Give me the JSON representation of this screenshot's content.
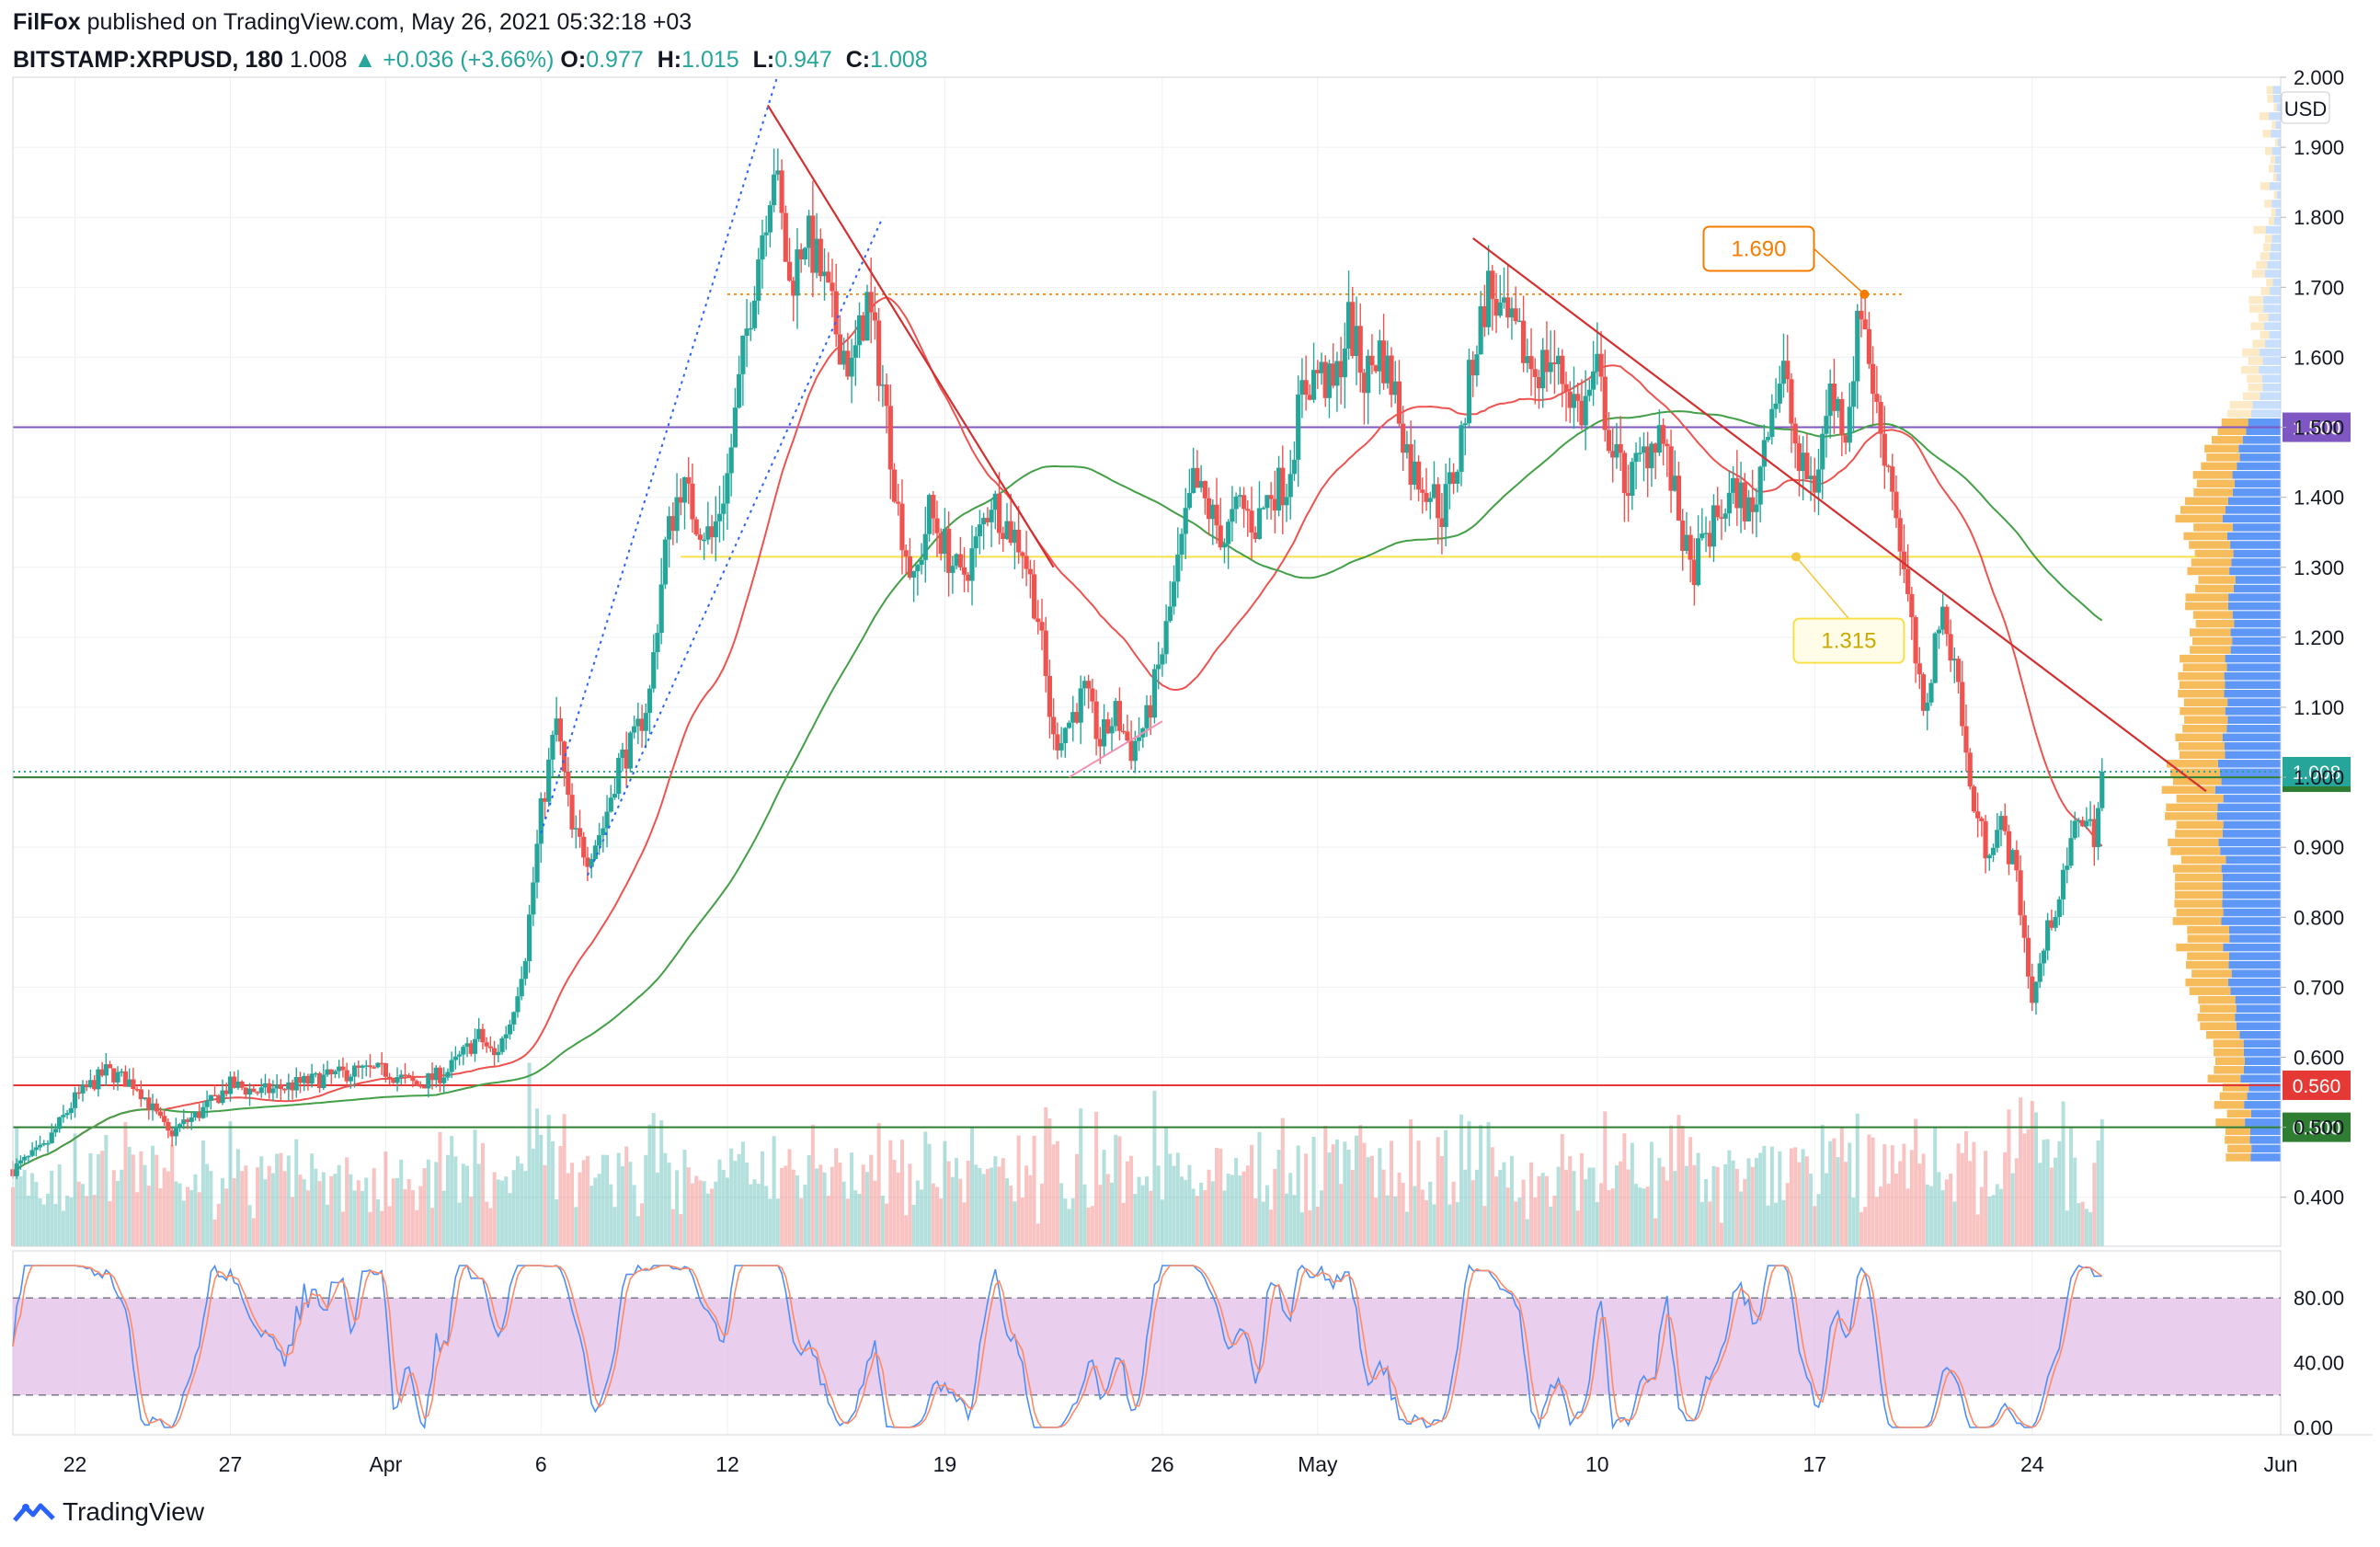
{
  "header": {
    "publisher": "FilFox",
    "published_line": "published on TradingView.com, May 26, 2021 05:32:18 +03",
    "symbol": "BITSTAMP:XRPUSD, 180",
    "last": "1.008",
    "change": "+0.036 (+3.66%)",
    "o_label": "O:",
    "o_value": "0.977",
    "h_label": "H:",
    "h_value": "1.015",
    "l_label": "L:",
    "l_value": "0.947",
    "c_label": "C:",
    "c_value": "1.008"
  },
  "footer": {
    "brand": "TradingView"
  },
  "colors": {
    "up": "#26a69a",
    "down": "#ef5350",
    "trend": "#d32f2f",
    "ma_fast": "#ef5350",
    "ma_slow": "#43a047",
    "purple": "#7e57c2",
    "stoch_band": "#e1bee7",
    "orange": "#f57c00",
    "yellow": "#f9e04b"
  },
  "chart_data": {
    "type": "candlestick",
    "currency": "USD",
    "price_axis": {
      "ticks": [
        "2.000",
        "1.900",
        "1.800",
        "1.700",
        "1.600",
        "1.500",
        "1.400",
        "1.300",
        "1.200",
        "1.100",
        "1.000",
        "0.900",
        "0.800",
        "0.700",
        "0.600",
        "0.500",
        "0.400"
      ],
      "min": 0.33,
      "max": 2.0
    },
    "x_labels": [
      {
        "label": "22",
        "day": 22
      },
      {
        "label": "27",
        "day": 27
      },
      {
        "label": "Apr",
        "day": 32
      },
      {
        "label": "6",
        "day": 37
      },
      {
        "label": "12",
        "day": 43
      },
      {
        "label": "19",
        "day": 50
      },
      {
        "label": "26",
        "day": 57
      },
      {
        "label": "May",
        "day": 62
      },
      {
        "label": "10",
        "day": 71
      },
      {
        "label": "17",
        "day": 78
      },
      {
        "label": "24",
        "day": 85
      },
      {
        "label": "Jun",
        "day": 93
      }
    ],
    "x_range_days": [
      20,
      93
    ],
    "price_path": [
      [
        20,
        0.44
      ],
      [
        21,
        0.47
      ],
      [
        22,
        0.54
      ],
      [
        23,
        0.58
      ],
      [
        24,
        0.56
      ],
      [
        25,
        0.49
      ],
      [
        26,
        0.52
      ],
      [
        27,
        0.56
      ],
      [
        28,
        0.55
      ],
      [
        29,
        0.56
      ],
      [
        30,
        0.57
      ],
      [
        31,
        0.58
      ],
      [
        32,
        0.58
      ],
      [
        33,
        0.56
      ],
      [
        34,
        0.58
      ],
      [
        35,
        0.63
      ],
      [
        35.5,
        0.6
      ],
      [
        36,
        0.65
      ],
      [
        36.5,
        0.75
      ],
      [
        37,
        0.95
      ],
      [
        37.5,
        1.08
      ],
      [
        38,
        0.92
      ],
      [
        38.5,
        0.89
      ],
      [
        39,
        0.93
      ],
      [
        39.5,
        1.02
      ],
      [
        40,
        1.05
      ],
      [
        40.5,
        1.12
      ],
      [
        41,
        1.33
      ],
      [
        41.5,
        1.42
      ],
      [
        42,
        1.37
      ],
      [
        42.5,
        1.34
      ],
      [
        43,
        1.43
      ],
      [
        43.5,
        1.6
      ],
      [
        44,
        1.75
      ],
      [
        44.5,
        1.88
      ],
      [
        45,
        1.7
      ],
      [
        45.5,
        1.78
      ],
      [
        46,
        1.72
      ],
      [
        46.5,
        1.64
      ],
      [
        47,
        1.58
      ],
      [
        47.5,
        1.68
      ],
      [
        48,
        1.56
      ],
      [
        48.5,
        1.38
      ],
      [
        49,
        1.27
      ],
      [
        49.5,
        1.38
      ],
      [
        50,
        1.33
      ],
      [
        50.5,
        1.28
      ],
      [
        51,
        1.33
      ],
      [
        51.5,
        1.4
      ],
      [
        52,
        1.36
      ],
      [
        52.5,
        1.33
      ],
      [
        53,
        1.23
      ],
      [
        53.5,
        1.05
      ],
      [
        54,
        1.08
      ],
      [
        54.5,
        1.12
      ],
      [
        55,
        1.05
      ],
      [
        55.5,
        1.09
      ],
      [
        56,
        1.04
      ],
      [
        56.5,
        1.08
      ],
      [
        57,
        1.18
      ],
      [
        57.5,
        1.3
      ],
      [
        58,
        1.42
      ],
      [
        58.5,
        1.38
      ],
      [
        59,
        1.34
      ],
      [
        59.5,
        1.39
      ],
      [
        60,
        1.36
      ],
      [
        60.5,
        1.41
      ],
      [
        61,
        1.42
      ],
      [
        61.5,
        1.55
      ],
      [
        62,
        1.58
      ],
      [
        62.5,
        1.55
      ],
      [
        63,
        1.65
      ],
      [
        63.5,
        1.57
      ],
      [
        64,
        1.61
      ],
      [
        64.5,
        1.55
      ],
      [
        65,
        1.44
      ],
      [
        65.5,
        1.42
      ],
      [
        66,
        1.38
      ],
      [
        66.5,
        1.45
      ],
      [
        67,
        1.6
      ],
      [
        67.5,
        1.7
      ],
      [
        68,
        1.65
      ],
      [
        68.5,
        1.62
      ],
      [
        69,
        1.58
      ],
      [
        69.5,
        1.6
      ],
      [
        70,
        1.56
      ],
      [
        70.5,
        1.52
      ],
      [
        71,
        1.58
      ],
      [
        71.5,
        1.46
      ],
      [
        72,
        1.42
      ],
      [
        72.5,
        1.46
      ],
      [
        73,
        1.5
      ],
      [
        73.5,
        1.4
      ],
      [
        74,
        1.29
      ],
      [
        74.5,
        1.34
      ],
      [
        75,
        1.38
      ],
      [
        75.5,
        1.41
      ],
      [
        76,
        1.37
      ],
      [
        76.5,
        1.52
      ],
      [
        77,
        1.58
      ],
      [
        77.5,
        1.44
      ],
      [
        78,
        1.42
      ],
      [
        78.5,
        1.55
      ],
      [
        79,
        1.5
      ],
      [
        79.5,
        1.68
      ],
      [
        80,
        1.52
      ],
      [
        80.5,
        1.42
      ],
      [
        81,
        1.25
      ],
      [
        81.5,
        1.08
      ],
      [
        82,
        1.23
      ],
      [
        82.5,
        1.18
      ],
      [
        83,
        0.98
      ],
      [
        83.5,
        0.9
      ],
      [
        84,
        0.93
      ],
      [
        84.5,
        0.86
      ],
      [
        85,
        0.68
      ],
      [
        85.5,
        0.78
      ],
      [
        86,
        0.85
      ],
      [
        86.5,
        0.95
      ],
      [
        87,
        0.92
      ],
      [
        87.3,
        1.008
      ]
    ],
    "horizontal_levels": [
      {
        "price": 1.5,
        "color": "#7e57c2",
        "label": "1.500"
      },
      {
        "price": 1.0,
        "color": "#2e7d32",
        "label": "1.000"
      },
      {
        "price": 0.56,
        "color": "#e53935",
        "label": "0.560"
      },
      {
        "price": 0.5,
        "color": "#2e7d32",
        "label": "0.500"
      }
    ],
    "last_price_label": "1.008",
    "callouts": [
      {
        "text": "1.690",
        "price": 1.69,
        "color": "#f57c00"
      },
      {
        "text": "1.315",
        "price": 1.315,
        "color": "#f9e04b"
      }
    ],
    "stochastic": {
      "ticks": [
        "80.00",
        "40.00",
        "0.00"
      ],
      "band": [
        20,
        80
      ]
    }
  }
}
